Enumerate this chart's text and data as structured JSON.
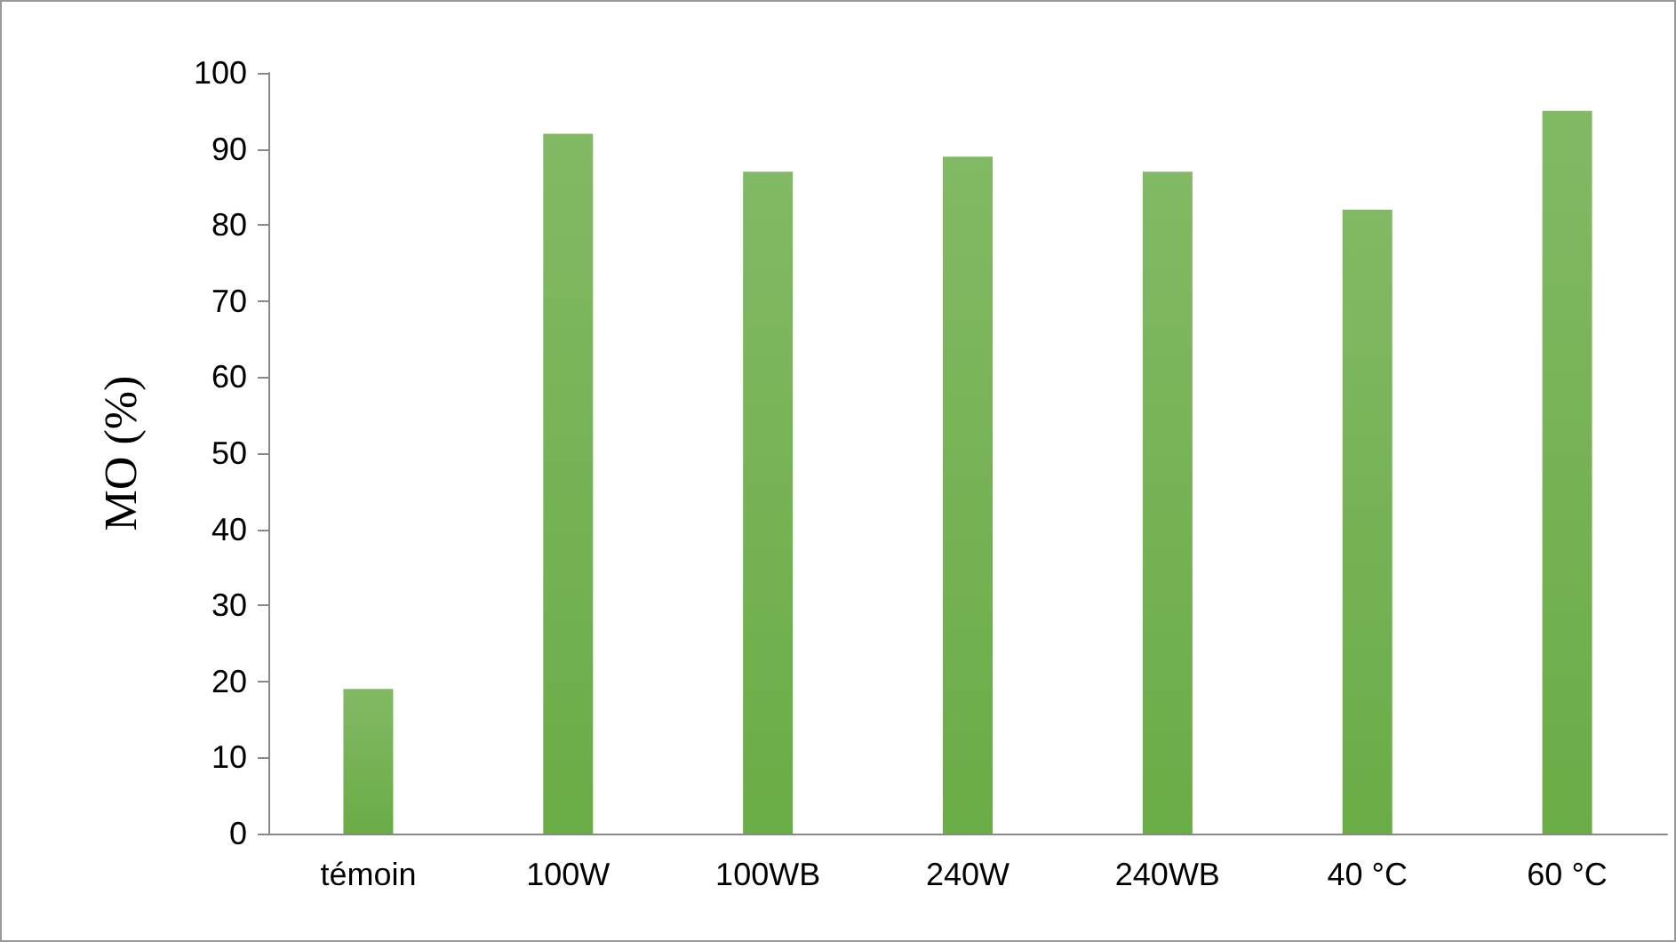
{
  "chart_data": {
    "type": "bar",
    "ylabel": "MO (%)",
    "categories": [
      "témoin",
      "100W",
      "100WB",
      "240W",
      "240WB",
      "40 °C",
      "60 °C"
    ],
    "values": [
      19,
      92,
      87,
      89,
      87,
      82,
      95
    ],
    "color": "#6aac46",
    "ylim": [
      0,
      100
    ],
    "yticks": [
      0,
      10,
      20,
      30,
      40,
      50,
      60,
      70,
      80,
      90,
      100
    ],
    "grid": false
  }
}
